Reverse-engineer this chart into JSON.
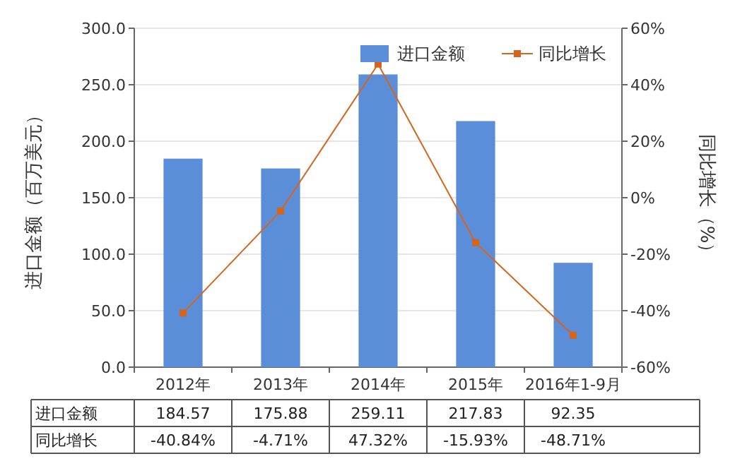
{
  "chart_data": {
    "type": "bar",
    "categories": [
      "2012年",
      "2013年",
      "2014年",
      "2015年",
      "2016年1-9月"
    ],
    "series": [
      {
        "name": "进口金额",
        "color": "#5b8ed8",
        "values": [
          184.57,
          175.88,
          259.11,
          217.83,
          92.35
        ],
        "value_labels": [
          "184.57",
          "175.88",
          "259.11",
          "217.83",
          "92.35"
        ]
      },
      {
        "name": "同比增长",
        "type": "line",
        "axis": "y2",
        "color": "#d5651c",
        "values": [
          -40.84,
          -4.71,
          47.32,
          -15.93,
          -48.71
        ],
        "value_labels": [
          "-40.84%",
          "-4.71%",
          "47.32%",
          "-15.93%",
          "-48.71%"
        ]
      }
    ],
    "ylabel": "进口金额（百万美元）",
    "y2label": "同比增长（%）",
    "ylim": [
      0,
      300
    ],
    "yticks": [
      {
        "value": 0,
        "label": "0.0"
      },
      {
        "value": 50,
        "label": "50.0"
      },
      {
        "value": 100,
        "label": "100.0"
      },
      {
        "value": 150,
        "label": "150.0"
      },
      {
        "value": 200,
        "label": "200.0"
      },
      {
        "value": 250,
        "label": "250.0"
      },
      {
        "value": 300,
        "label": "300.0"
      }
    ],
    "y2lim": [
      -60,
      60
    ],
    "y2ticks": [
      {
        "value": -60,
        "label": "-60%"
      },
      {
        "value": -40,
        "label": "-40%"
      },
      {
        "value": -20,
        "label": "-20%"
      },
      {
        "value": 0,
        "label": "0%"
      },
      {
        "value": 20,
        "label": "20%"
      },
      {
        "value": 40,
        "label": "40%"
      },
      {
        "value": 60,
        "label": "60%"
      }
    ],
    "grid": "y",
    "legend": "top right",
    "marker": "square"
  }
}
